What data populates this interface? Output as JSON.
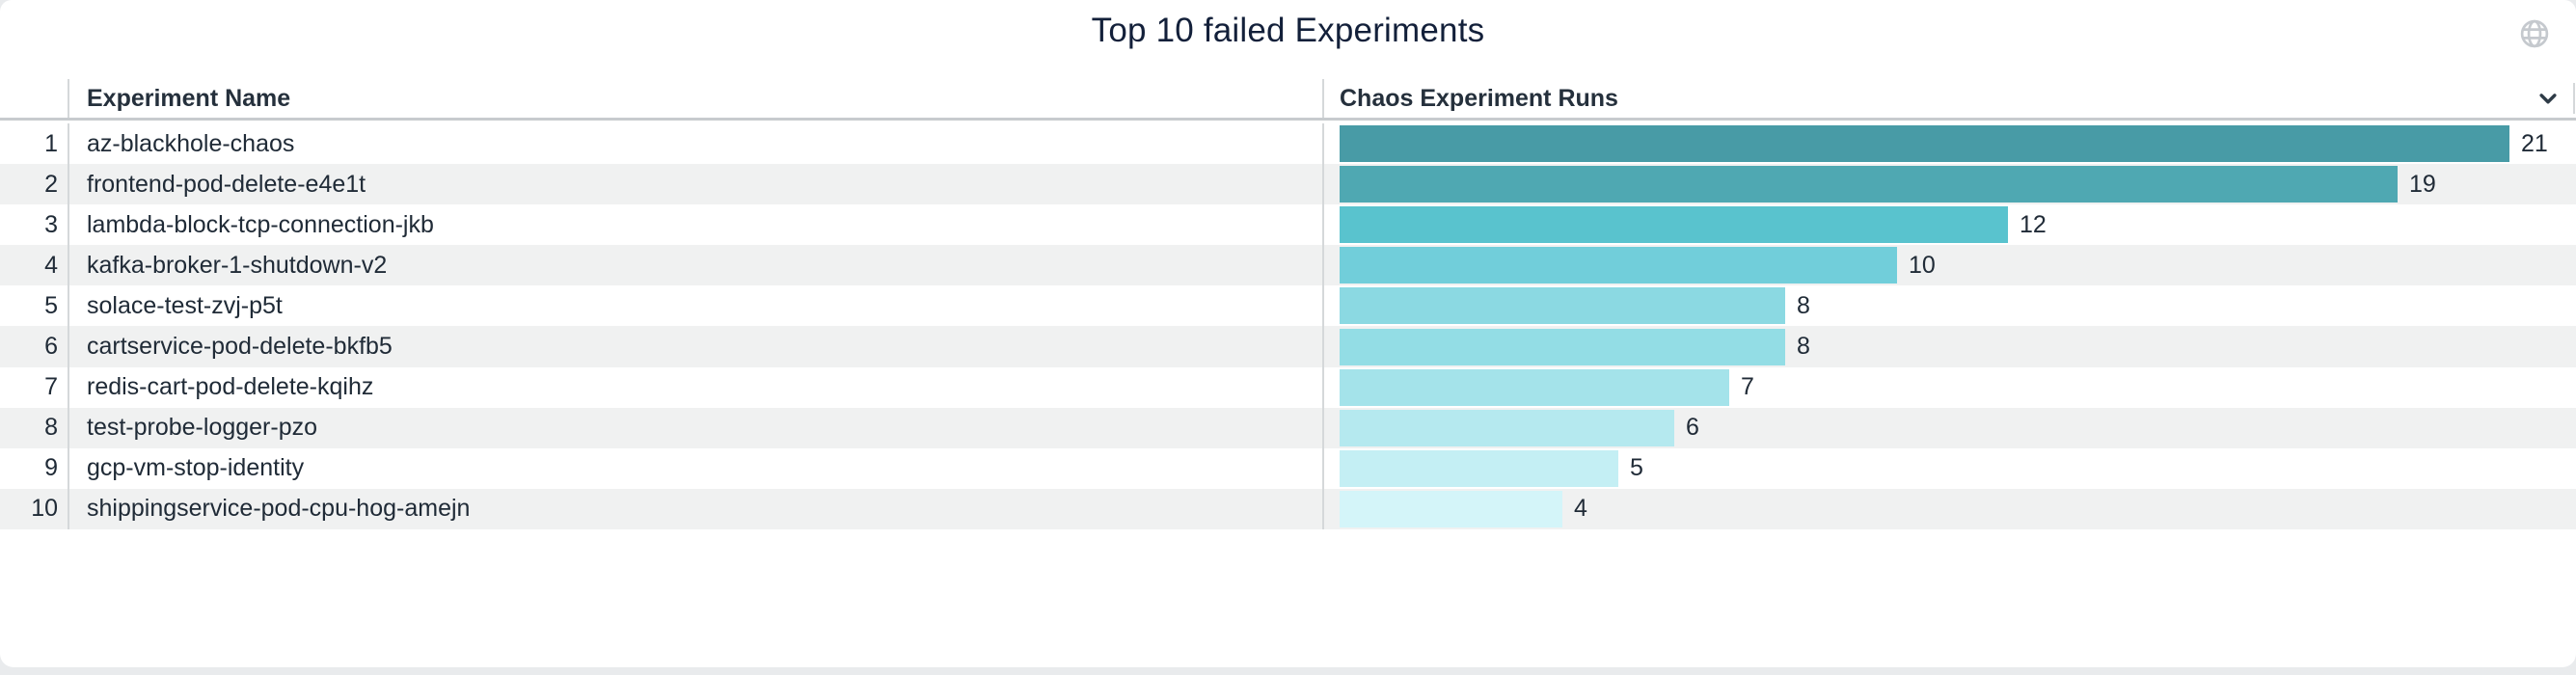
{
  "widget": {
    "title": "Top 10 failed Experiments"
  },
  "table": {
    "columns": [
      {
        "label": "Experiment Name"
      },
      {
        "label": "Chaos Experiment Runs"
      }
    ],
    "rows": [
      {
        "rank": "1",
        "name": "az-blackhole-chaos",
        "runs": "21"
      },
      {
        "rank": "2",
        "name": "frontend-pod-delete-e4e1t",
        "runs": "19"
      },
      {
        "rank": "3",
        "name": "lambda-block-tcp-connection-jkb",
        "runs": "12"
      },
      {
        "rank": "4",
        "name": "kafka-broker-1-shutdown-v2",
        "runs": "10"
      },
      {
        "rank": "5",
        "name": "solace-test-zvj-p5t",
        "runs": "8"
      },
      {
        "rank": "6",
        "name": "cartservice-pod-delete-bkfb5",
        "runs": "8"
      },
      {
        "rank": "7",
        "name": "redis-cart-pod-delete-kqihz",
        "runs": "7"
      },
      {
        "rank": "8",
        "name": "test-probe-logger-pzo",
        "runs": "6"
      },
      {
        "rank": "9",
        "name": "gcp-vm-stop-identity",
        "runs": "5"
      },
      {
        "rank": "10",
        "name": "shippingservice-pod-cpu-hog-amejn",
        "runs": "4"
      }
    ]
  },
  "icons": {
    "top_right": "globe-icon",
    "sort": "chevron-down-icon"
  },
  "colors": {
    "page_bg": "#E9EBED",
    "card_bg": "#FFFFFF",
    "title_text": "#13203A",
    "header_text": "#25303C",
    "row_text": "#202B37",
    "row_stripe": "#F0F1F1",
    "column_divider": "#D5D8DA",
    "header_underline": "#C7CBCE",
    "globe_icon": "#C5C9CE",
    "chevron_icon": "#2E3B47"
  },
  "chart_data": {
    "type": "bar",
    "orientation": "horizontal",
    "title": "Top 10 failed Experiments",
    "categories": [
      "az-blackhole-chaos",
      "frontend-pod-delete-e4e1t",
      "lambda-block-tcp-connection-jkb",
      "kafka-broker-1-shutdown-v2",
      "solace-test-zvj-p5t",
      "cartservice-pod-delete-bkfb5",
      "redis-cart-pod-delete-kqihz",
      "test-probe-logger-pzo",
      "gcp-vm-stop-identity",
      "shippingservice-pod-cpu-hog-amejn"
    ],
    "values": [
      21,
      19,
      12,
      10,
      8,
      8,
      7,
      6,
      5,
      4
    ],
    "xlabel": "Chaos Experiment Runs",
    "ylabel": "Experiment Name",
    "xlim": [
      0,
      21
    ],
    "grid": false,
    "legend": false,
    "value_labels_shown": true,
    "bar_colors": [
      "#489BA6",
      "#4FA8B2",
      "#59C3CE",
      "#71CEDA",
      "#8BD9E2",
      "#93DDE5",
      "#A4E3EA",
      "#B5E9EF",
      "#C4EFF4",
      "#D4F5F9"
    ]
  }
}
